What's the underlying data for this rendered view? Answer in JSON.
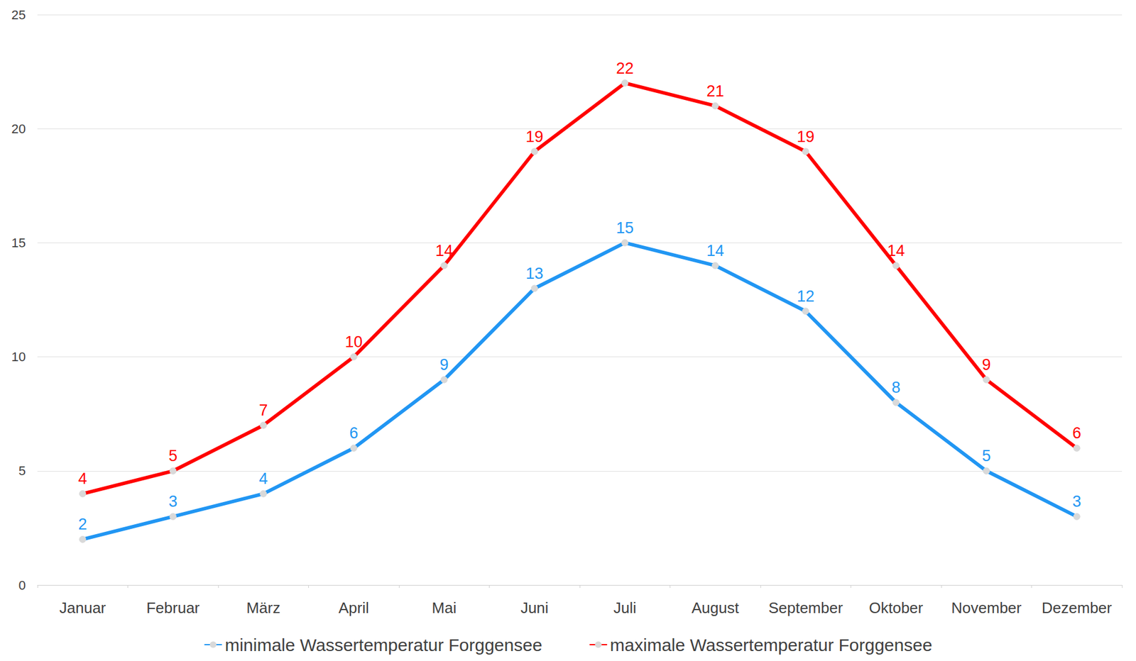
{
  "chart_data": {
    "type": "line",
    "categories": [
      "Januar",
      "Februar",
      "März",
      "April",
      "Mai",
      "Juni",
      "Juli",
      "August",
      "September",
      "Oktober",
      "November",
      "Dezember"
    ],
    "series": [
      {
        "name": "minimale Wassertemperatur Forggensee",
        "color": "#2196f3",
        "values": [
          2,
          3,
          4,
          6,
          9,
          13,
          15,
          14,
          12,
          8,
          5,
          3
        ]
      },
      {
        "name": "maximale Wassertemperatur Forggensee",
        "color": "#ff0000",
        "values": [
          4,
          5,
          7,
          10,
          14,
          19,
          22,
          21,
          19,
          14,
          9,
          6
        ]
      }
    ],
    "ylim": [
      0,
      25
    ],
    "yticks": [
      0,
      5,
      10,
      15,
      20,
      25
    ],
    "grid": true,
    "legend": "bottom",
    "data_labels": true,
    "marker": "circle"
  }
}
